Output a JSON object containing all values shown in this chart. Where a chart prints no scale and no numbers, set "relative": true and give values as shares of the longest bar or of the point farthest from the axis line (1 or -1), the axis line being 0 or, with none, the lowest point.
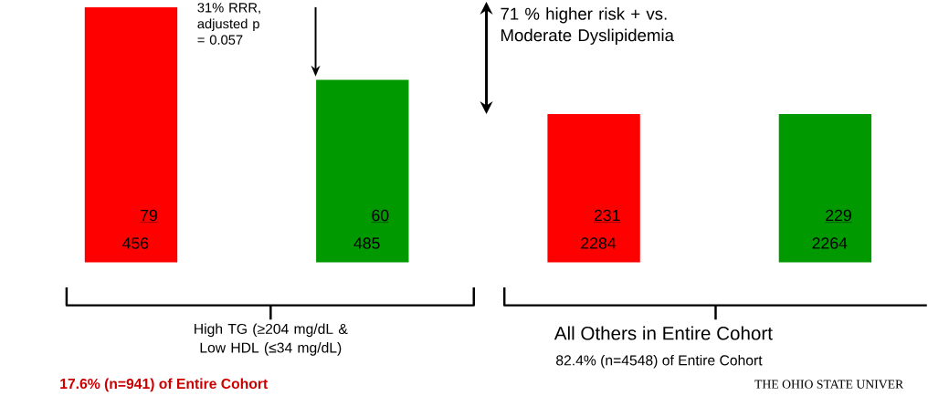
{
  "chart_data": {
    "type": "bar",
    "relative": true,
    "categories": [
      null,
      null,
      null,
      null
    ],
    "values": [
      1,
      0.715,
      0.581,
      0.581
    ],
    "colors": [
      "#ff0000",
      "#009900",
      "#ff0000",
      "#009900"
    ],
    "annotations": [
      "456",
      "485",
      "2284",
      "2264",
      "31% RRR, adjusted p = 0.057",
      "71 % higher risk  + vs. Moderate Dyslipidemia",
      "High TG (≥204 mg/dL & Low HDL (≤34 mg/dL)",
      "All Others in Entire Cohort",
      "82.4% (n=4548) of Entire Cohort",
      "17.6%  (n=941) of Entire Cohort",
      "THE OHIO STATE UNIVER",
      "79",
      "60",
      "231",
      "229"
    ]
  }
}
